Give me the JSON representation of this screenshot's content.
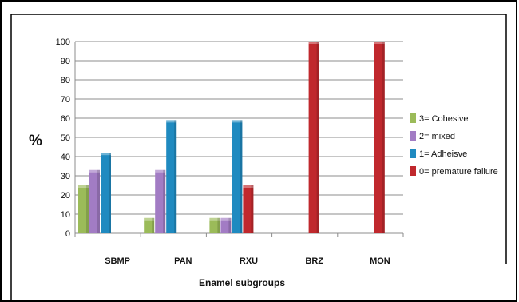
{
  "chart_data": {
    "type": "bar",
    "categories": [
      "SBMP",
      "PAN",
      "RXU",
      "BRZ",
      "MON"
    ],
    "series": [
      {
        "name": "3= Cohesive",
        "color": "#9bbb59",
        "values": [
          25,
          8,
          8,
          0,
          0
        ]
      },
      {
        "name": "2= mixed",
        "color": "#a27cc4",
        "values": [
          33,
          33,
          8,
          0,
          0
        ]
      },
      {
        "name": "1= Adheisve",
        "color": "#1f8ac0",
        "values": [
          42,
          59,
          59,
          0,
          0
        ]
      },
      {
        "name": "0= premature failure",
        "color": "#c0282d",
        "values": [
          0,
          0,
          25,
          100,
          100
        ]
      }
    ],
    "yticks": [
      "0",
      "10",
      "20",
      "30",
      "40",
      "50",
      "60",
      "70",
      "80",
      "90",
      "100"
    ],
    "ylim": [
      0,
      100
    ],
    "ylabel": "%",
    "xlabel": "Enamel subgroups",
    "grid": true,
    "legend": "right"
  }
}
